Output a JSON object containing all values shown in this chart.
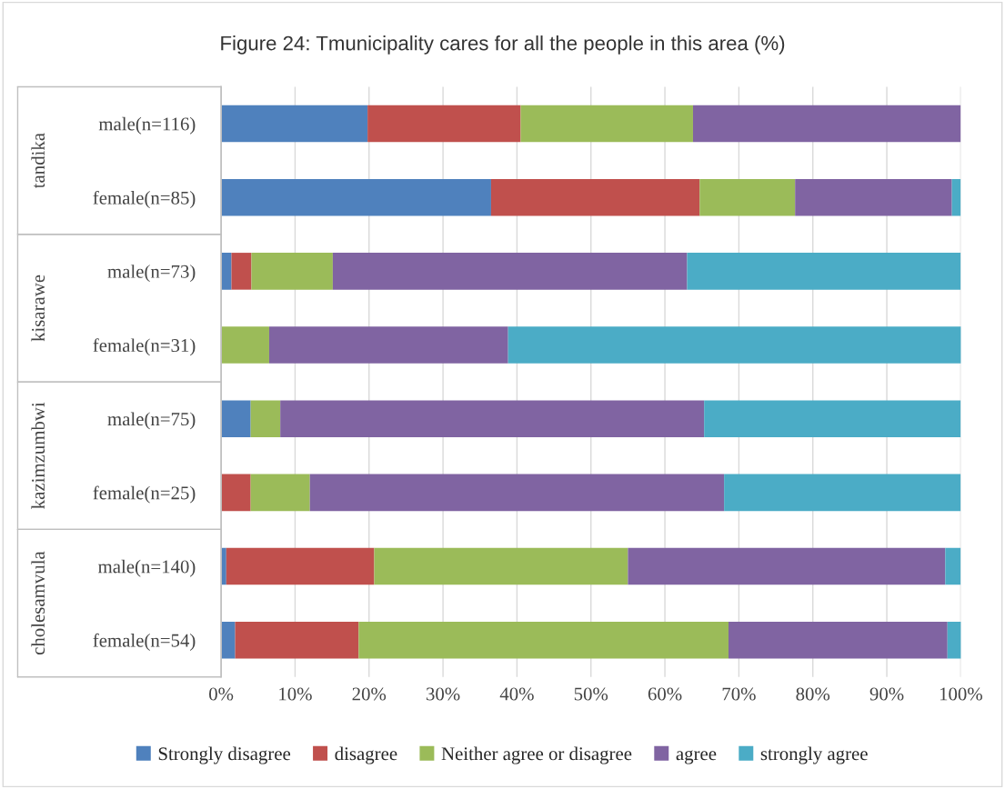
{
  "chart_data": {
    "type": "bar",
    "orientation": "horizontal",
    "stacked": true,
    "title": "Figure 24: Tmunicipality cares for all the people in this area (%)",
    "categories": [
      "male(n=116)",
      "female(n=85)",
      "male(n=73)",
      "female(n=31)",
      "male(n=75)",
      "female(n=25)",
      "male(n=140)",
      "female(n=54)"
    ],
    "annotations": [
      "tandika",
      "kisarawe",
      "kazimzumbwi",
      "cholesamvula"
    ],
    "series": [
      {
        "name": "Strongly disagree",
        "color": "#4f81bd",
        "values": [
          19.8,
          36.5,
          1.4,
          null,
          4.0,
          null,
          0.7,
          1.9
        ]
      },
      {
        "name": "disagree",
        "color": "#c0504d",
        "values": [
          20.7,
          28.2,
          2.7,
          null,
          null,
          4.0,
          20.0,
          16.7
        ]
      },
      {
        "name": "Neither agree or disagree",
        "color": "#9bbb59",
        "values": [
          23.3,
          12.9,
          11.0,
          6.5,
          4.0,
          8.0,
          34.3,
          50.0
        ]
      },
      {
        "name": "agree",
        "color": "#8064a2",
        "values": [
          36.2,
          21.2,
          47.9,
          32.3,
          57.3,
          56.0,
          42.9,
          29.6
        ]
      },
      {
        "name": "strongly agree",
        "color": "#4bacc6",
        "values": [
          null,
          1.2,
          37.0,
          61.3,
          34.7,
          32.0,
          2.1,
          1.9
        ]
      }
    ],
    "xlim": [
      0,
      100
    ],
    "xticks": [
      {
        "value": 0,
        "label": "0%"
      },
      {
        "value": 10,
        "label": "10%"
      },
      {
        "value": 20,
        "label": "20%"
      },
      {
        "value": 30,
        "label": "30%"
      },
      {
        "value": 40,
        "label": "40%"
      },
      {
        "value": 50,
        "label": "50%"
      },
      {
        "value": 60,
        "label": "60%"
      },
      {
        "value": 70,
        "label": "70%"
      },
      {
        "value": 80,
        "label": "80%"
      },
      {
        "value": 90,
        "label": "90%"
      },
      {
        "value": 100,
        "label": "100%"
      }
    ],
    "grid": "x",
    "legend": "bottom"
  }
}
